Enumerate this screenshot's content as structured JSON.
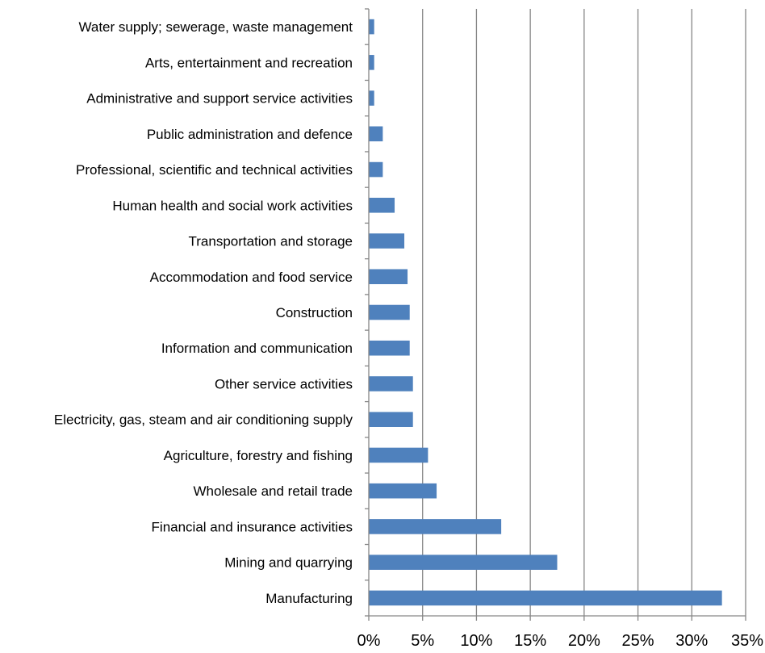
{
  "chart_data": {
    "type": "bar",
    "orientation": "horizontal",
    "title": "",
    "xlabel": "",
    "ylabel": "",
    "categories": [
      "Water supply; sewerage, waste management",
      "Arts, entertainment and recreation",
      "Administrative and support service activities",
      "Public administration and defence",
      "Professional, scientific and technical activities",
      "Human health and social work activities",
      "Transportation and storage",
      "Accommodation and food service",
      "Construction",
      "Information and communication",
      "Other service activities",
      "Electricity, gas, steam and air conditioning supply",
      "Agriculture, forestry and fishing",
      "Wholesale and retail trade",
      "Financial and insurance activities",
      "Mining and quarrying",
      "Manufacturing"
    ],
    "values": [
      0.5,
      0.5,
      0.5,
      1.3,
      1.3,
      2.4,
      3.3,
      3.6,
      3.8,
      3.8,
      4.1,
      4.1,
      5.5,
      6.3,
      12.3,
      17.5,
      32.8
    ],
    "xlim": [
      0,
      35
    ],
    "xticks": [
      0,
      5,
      10,
      15,
      20,
      25,
      30,
      35
    ],
    "xtick_labels": [
      "0%",
      "5%",
      "10%",
      "15%",
      "20%",
      "25%",
      "30%",
      "35%"
    ],
    "grid": "vertical",
    "legend": "none",
    "bar_color": "#4f81bd",
    "grid_color": "#868686"
  }
}
